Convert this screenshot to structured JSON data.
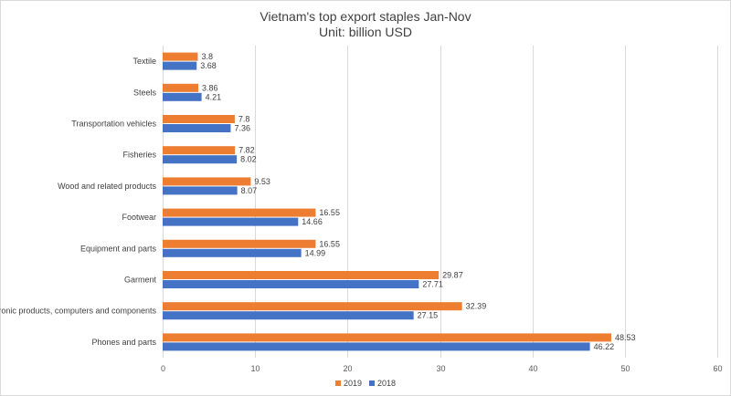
{
  "chart_data": {
    "type": "bar",
    "orientation": "horizontal",
    "title": "Vietnam's top export staples Jan-Nov",
    "subtitle": "Unit: billion USD",
    "categories": [
      "Textile",
      "Steels",
      "Transportation vehicles",
      "Fisheries",
      "Wood and related products",
      "Footwear",
      "Equipment and parts",
      "Garment",
      "Electronic products, computers and components",
      "Phones and parts"
    ],
    "series": [
      {
        "name": "2019",
        "color": "#ed7d31",
        "values": [
          3.8,
          3.86,
          7.8,
          7.82,
          9.53,
          16.55,
          16.55,
          29.87,
          32.39,
          48.53
        ]
      },
      {
        "name": "2018",
        "color": "#4472c4",
        "values": [
          3.68,
          4.21,
          7.36,
          8.02,
          8.07,
          14.66,
          14.99,
          27.71,
          27.15,
          46.22
        ]
      }
    ],
    "xlim": [
      0,
      60
    ],
    "xticks": [
      0,
      10,
      20,
      30,
      40,
      50,
      60
    ],
    "grid": true,
    "legend": "bottom",
    "legend_order": [
      "2019",
      "2018"
    ]
  }
}
